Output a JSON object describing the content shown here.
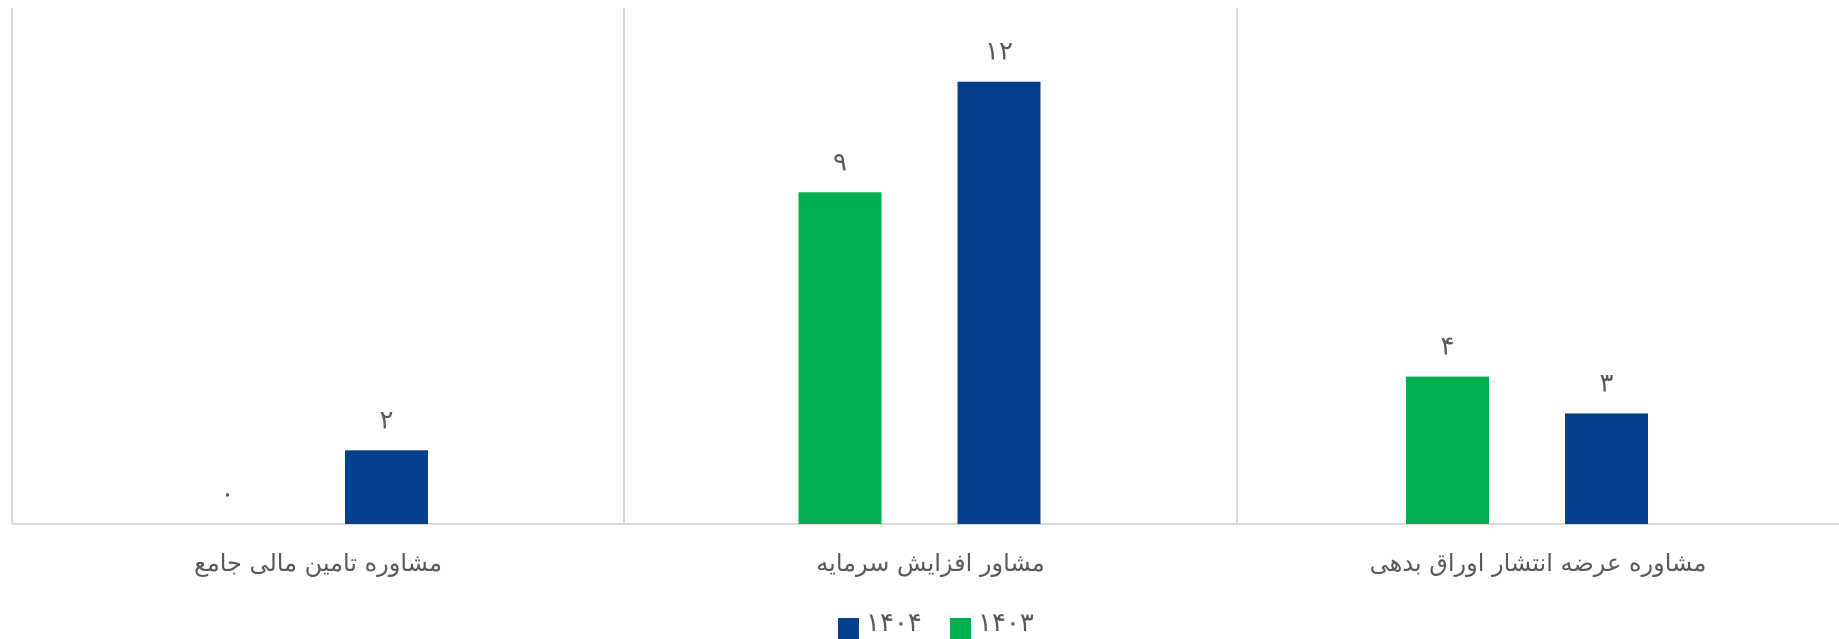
{
  "chart_data": {
    "type": "bar",
    "categories": [
      "مشاوره تامین مالی جامع",
      "مشاور افزایش سرمایه",
      "مشاوره عرضه انتشار اوراق بدهی"
    ],
    "series": [
      {
        "name": "۱۴۰۳",
        "values": [
          0,
          9,
          4
        ],
        "labels": [
          "۰",
          "۹",
          "۴"
        ]
      },
      {
        "name": "۱۴۰۴",
        "values": [
          2,
          12,
          3
        ],
        "labels": [
          "۲",
          "۱۲",
          "۳"
        ]
      }
    ],
    "ylim": [
      0,
      14
    ],
    "title": "",
    "xlabel": "",
    "ylabel": "",
    "grid": false,
    "legend": "bottom-center",
    "colors": {
      "۱۴۰۳": "#00AF50",
      "۱۴۰۴": "#043F8B",
      "axis": "#D9D9D9",
      "text": "#595959"
    }
  }
}
